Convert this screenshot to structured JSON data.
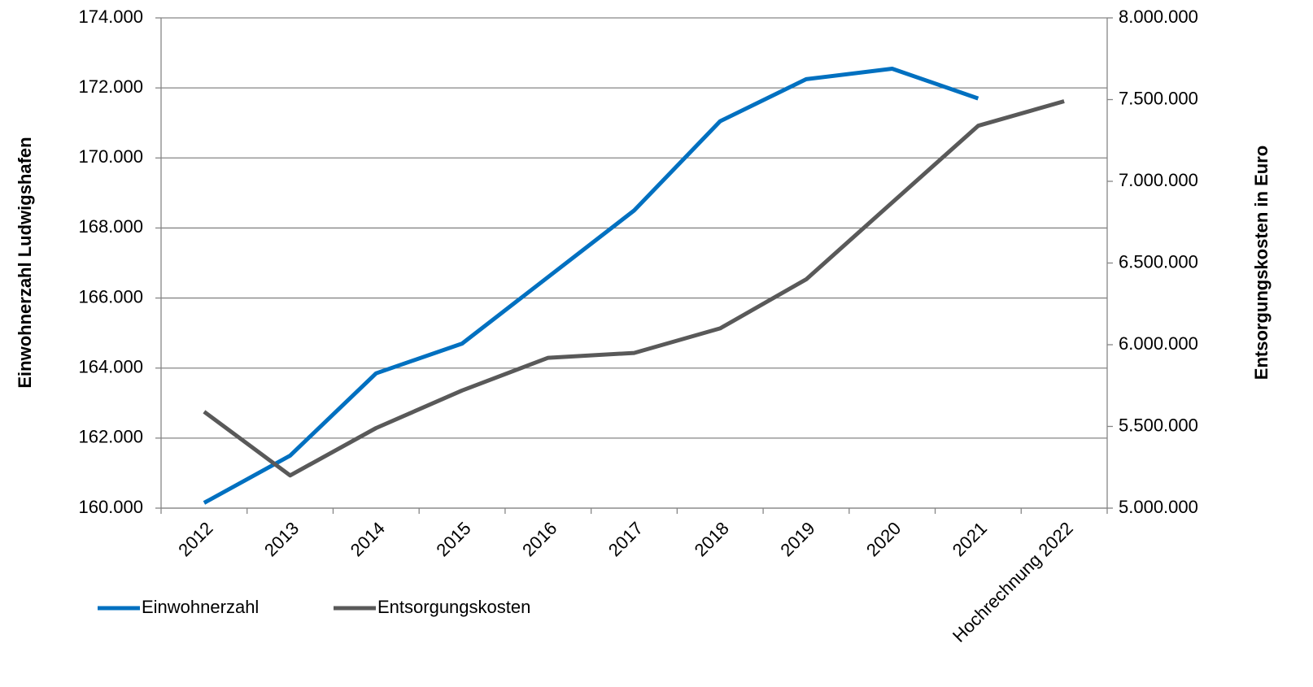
{
  "chart_data": {
    "type": "line",
    "categories": [
      "2012",
      "2013",
      "2014",
      "2015",
      "2016",
      "2017",
      "2018",
      "2019",
      "2020",
      "2021",
      "Hochrechnung 2022"
    ],
    "series": [
      {
        "name": "Einwohnerzahl",
        "color": "#0070c0",
        "axis": "y",
        "values": [
          160150,
          161500,
          163850,
          164700,
          166600,
          168500,
          171050,
          172250,
          172550,
          171700,
          null
        ]
      },
      {
        "name": "Entsorgungskosten",
        "color": "#595959",
        "axis": "y2",
        "values": [
          5590000,
          5200000,
          5490000,
          5720000,
          5920000,
          5950000,
          6100000,
          6400000,
          6870000,
          7340000,
          7490000
        ]
      }
    ],
    "ylabel": "Einwohnerzahl Ludwigshafen",
    "y2label": "Entsorgungskosten in Euro",
    "ylim": [
      160000,
      174000
    ],
    "yticks": [
      {
        "value": 160000,
        "label": "160.000"
      },
      {
        "value": 162000,
        "label": "162.000"
      },
      {
        "value": 164000,
        "label": "164.000"
      },
      {
        "value": 166000,
        "label": "166.000"
      },
      {
        "value": 168000,
        "label": "168.000"
      },
      {
        "value": 170000,
        "label": "170.000"
      },
      {
        "value": 172000,
        "label": "172.000"
      },
      {
        "value": 174000,
        "label": "174.000"
      }
    ],
    "y2lim": [
      5000000,
      8000000
    ],
    "y2ticks": [
      {
        "value": 5000000,
        "label": "5.000.000"
      },
      {
        "value": 5500000,
        "label": "5.500.000"
      },
      {
        "value": 6000000,
        "label": "6.000.000"
      },
      {
        "value": 6500000,
        "label": "6.500.000"
      },
      {
        "value": 7000000,
        "label": "7.000.000"
      },
      {
        "value": 7500000,
        "label": "7.500.000"
      },
      {
        "value": 8000000,
        "label": "8.000.000"
      }
    ],
    "grid": true,
    "legend": "bottom-left"
  }
}
